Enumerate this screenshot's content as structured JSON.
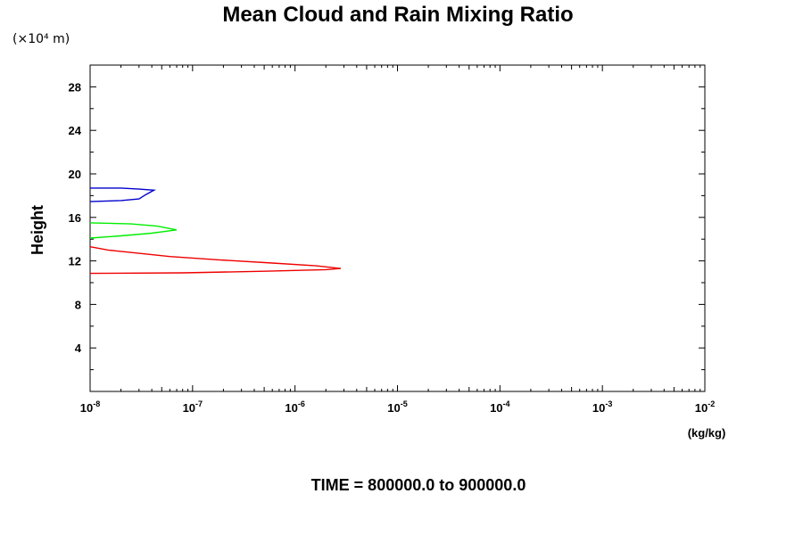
{
  "chart_data": {
    "type": "line",
    "title": "Mean Cloud and Rain Mixing Ratio",
    "y_unit_note": "(×10⁴ m)",
    "ylabel": "Height",
    "xlabel_unit": "(kg/kg)",
    "footer": "TIME = 800000.0 to 900000.0",
    "x_scale": "log",
    "xlim": [
      1e-08,
      0.01
    ],
    "ylim": [
      0,
      30
    ],
    "x_ticks": [
      {
        "base": "10",
        "exp": "-8",
        "value": 1e-08
      },
      {
        "base": "10",
        "exp": "-7",
        "value": 1e-07
      },
      {
        "base": "10",
        "exp": "-6",
        "value": 1e-06
      },
      {
        "base": "10",
        "exp": "-5",
        "value": 1e-05
      },
      {
        "base": "10",
        "exp": "-4",
        "value": 0.0001
      },
      {
        "base": "10",
        "exp": "-3",
        "value": 0.001
      },
      {
        "base": "10",
        "exp": "-2",
        "value": 0.01
      }
    ],
    "y_ticks": [
      "4",
      "8",
      "12",
      "16",
      "20",
      "24",
      "28"
    ],
    "series": [
      {
        "color": "#0000cc",
        "points": [
          [
            1e-08,
            18.7
          ],
          [
            2e-08,
            18.7
          ],
          [
            3e-08,
            18.6
          ],
          [
            4.2e-08,
            18.5
          ],
          [
            3.5e-08,
            18.1
          ],
          [
            3e-08,
            17.7
          ],
          [
            2e-08,
            17.55
          ],
          [
            1e-08,
            17.45
          ]
        ]
      },
      {
        "color": "#00ee00",
        "points": [
          [
            1e-08,
            15.5
          ],
          [
            2.5e-08,
            15.4
          ],
          [
            4.5e-08,
            15.2
          ],
          [
            7e-08,
            14.85
          ],
          [
            4e-08,
            14.55
          ],
          [
            2e-08,
            14.3
          ],
          [
            1e-08,
            14.1
          ]
        ]
      },
      {
        "color": "#ee0000",
        "points": [
          [
            1e-08,
            13.3
          ],
          [
            1.5e-08,
            13.0
          ],
          [
            3e-08,
            12.7
          ],
          [
            6e-08,
            12.4
          ],
          [
            1.8e-07,
            12.1
          ],
          [
            6e-07,
            11.8
          ],
          [
            1.6e-06,
            11.55
          ],
          [
            2.8e-06,
            11.3
          ],
          [
            2e-06,
            11.2
          ],
          [
            5e-07,
            11.05
          ],
          [
            8e-08,
            10.9
          ],
          [
            1e-08,
            10.85
          ]
        ]
      }
    ]
  }
}
